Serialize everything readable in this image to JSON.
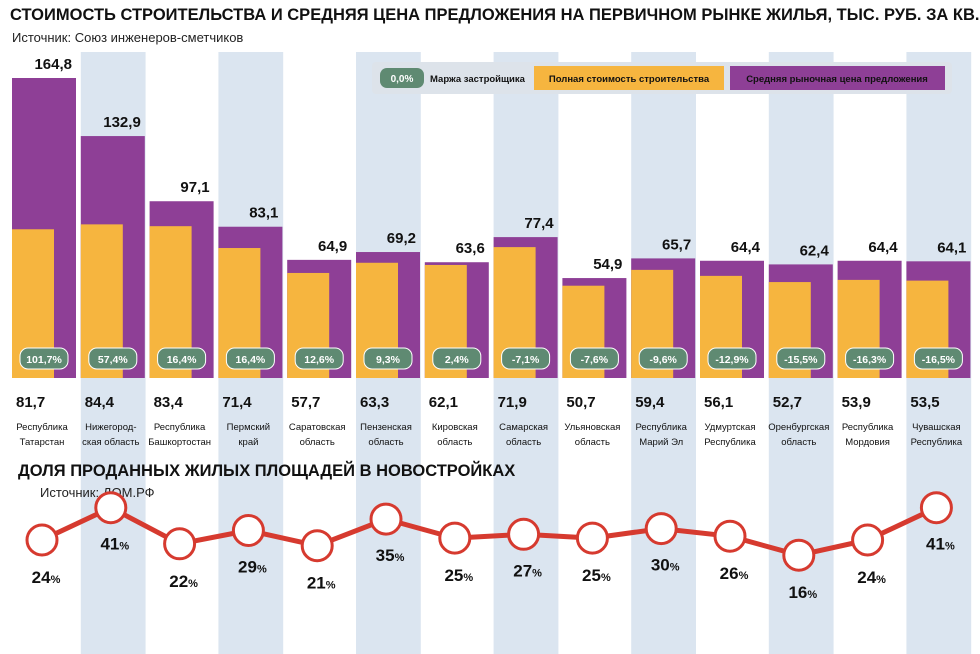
{
  "chart_data": [
    {
      "type": "bar",
      "title": "СТОИМОСТЬ СТРОИТЕЛЬСТВА И СРЕДНЯЯ ЦЕНА ПРЕДЛОЖЕНИЯ НА ПЕРВИЧНОМ РЫНКЕ ЖИЛЬЯ, ТЫС. РУБ. ЗА КВ. М",
      "subtitle": "Источник: Союз инженеров-сметчиков",
      "categories": [
        [
          "Республика",
          "Татарстан"
        ],
        [
          "Нижегород-",
          "ская область"
        ],
        [
          "Республика",
          "Башкортостан"
        ],
        [
          "Пермский",
          "край"
        ],
        [
          "Саратовская",
          "область"
        ],
        [
          "Пензенская",
          "область"
        ],
        [
          "Кировская",
          "область"
        ],
        [
          "Самарская",
          "область"
        ],
        [
          "Ульяновская",
          "область"
        ],
        [
          "Республика",
          "Марий Эл"
        ],
        [
          "Удмуртская",
          "Республика"
        ],
        [
          "Оренбургская",
          "область"
        ],
        [
          "Республика",
          "Мордовия"
        ],
        [
          "Чувашская",
          "Республика"
        ]
      ],
      "series": [
        {
          "name": "Полная стоимость строительства",
          "color": "#f6b53f",
          "values": [
            81.7,
            84.4,
            83.4,
            71.4,
            57.7,
            63.3,
            62.1,
            71.9,
            50.7,
            59.4,
            56.1,
            52.7,
            53.9,
            53.5
          ]
        },
        {
          "name": "Средняя рыночная цена предложения",
          "color": "#8e3f96",
          "values": [
            164.8,
            132.9,
            97.1,
            83.1,
            64.9,
            69.2,
            63.6,
            77.4,
            54.9,
            65.7,
            64.4,
            62.4,
            64.4,
            64.1
          ]
        }
      ],
      "margin": {
        "name": "Маржа застройщика",
        "legend_value": "0,0%",
        "values": [
          "101,7%",
          "57,4%",
          "16,4%",
          "16,4%",
          "12,6%",
          "9,3%",
          "2,4%",
          "-7,1%",
          "-7,6%",
          "-9,6%",
          "-12,9%",
          "-15,5%",
          "-16,3%",
          "-16,5%"
        ]
      },
      "top_labels": [
        "164,8",
        "132,9",
        "97,1",
        "83,1",
        "64,9",
        "69,2",
        "63,6",
        "77,4",
        "54,9",
        "65,7",
        "64,4",
        "62,4",
        "64,4",
        "64,1"
      ],
      "bottom_labels": [
        "81,7",
        "84,4",
        "83,4",
        "71,4",
        "57,7",
        "63,3",
        "62,1",
        "71,9",
        "50,7",
        "59,4",
        "56,1",
        "52,7",
        "53,9",
        "53,5"
      ],
      "ylim": [
        0,
        170
      ],
      "legend_placement": "top-right",
      "colors": {
        "margin_badge": "#5f8a72",
        "band": "#dbe5f0"
      }
    },
    {
      "type": "line",
      "title": "ДОЛЯ ПРОДАННЫХ ЖИЛЫХ ПЛОЩАДЕЙ В НОВОСТРОЙКАХ",
      "subtitle": "Источник: ДОМ.РФ",
      "values": [
        24,
        41,
        22,
        29,
        21,
        35,
        25,
        27,
        25,
        30,
        26,
        16,
        24,
        41
      ],
      "unit": "%",
      "colors": {
        "line": "#d63a2f",
        "marker_fill": "#ffffff"
      }
    }
  ]
}
